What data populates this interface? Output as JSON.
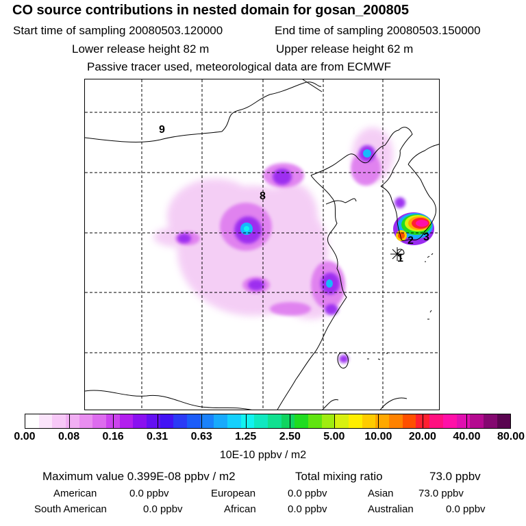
{
  "header": {
    "title": "CO  source contributions in nested domain for gosan_200805",
    "start_label": "Start time of sampling 20080503.120000",
    "end_label": "End time of sampling 20080503.150000",
    "lower_label": "Lower release height   82 m",
    "upper_label": "Upper release height   62 m",
    "tracer_note": "Passive tracer used, meteorological data are from ECMWF"
  },
  "map": {
    "region_labels": [
      "9",
      "8",
      "2",
      "3",
      "1"
    ]
  },
  "colorbar": {
    "colors": [
      "#ffffff",
      "#fbe4fb",
      "#f7c8f7",
      "#f1aef3",
      "#e98ef0",
      "#dd6cee",
      "#cc44ee",
      "#b21fee",
      "#8a10f0",
      "#6410f2",
      "#4213f4",
      "#2b3af6",
      "#1c5cf8",
      "#1a82fb",
      "#18aafc",
      "#14d0fd",
      "#12f2f0",
      "#10e8c0",
      "#10e090",
      "#10d460",
      "#20dc20",
      "#60e410",
      "#a0ec10",
      "#d8f010",
      "#ffee00",
      "#ffcc00",
      "#ffa800",
      "#ff8200",
      "#ff5000",
      "#ff2030",
      "#ff1080",
      "#ff10a8",
      "#e010b0",
      "#b40a90",
      "#840870",
      "#5a0550"
    ],
    "ticks": [
      "0.00",
      "0.08",
      "0.16",
      "0.31",
      "0.63",
      "1.25",
      "2.50",
      "5.00",
      "10.00",
      "20.00",
      "40.00",
      "80.00"
    ],
    "unit": "10E-10 ppbv / m2"
  },
  "stats": {
    "max_label": "Maximum value  0.399E-08 ppbv / m2",
    "total_label": "Total mixing ratio",
    "total_value": "73.0 ppbv",
    "regions": [
      {
        "name": "American",
        "value": "0.0 ppbv"
      },
      {
        "name": "European",
        "value": "0.0 ppbv"
      },
      {
        "name": "Asian",
        "value": "73.0 ppbv"
      },
      {
        "name": "South American",
        "value": "0.0 ppbv"
      },
      {
        "name": "African",
        "value": "0.0 ppbv"
      },
      {
        "name": "Australian",
        "value": "0.0 ppbv"
      }
    ]
  }
}
